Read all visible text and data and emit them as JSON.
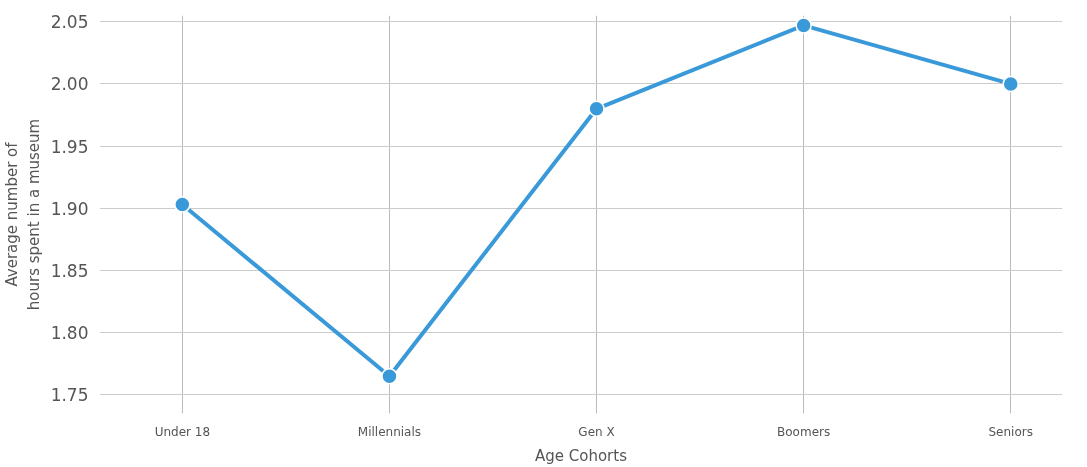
{
  "chart_data": {
    "type": "line",
    "xlabel": "Age Cohorts",
    "ylabel": "Average number of\nhours spent in a museum",
    "categories": [
      "Under 18",
      "Millennials",
      "Gen X",
      "Boomers",
      "Seniors"
    ],
    "series": [
      {
        "color": "#3a9ad9",
        "values": [
          1.903,
          1.765,
          1.98,
          2.047,
          2.0
        ]
      }
    ],
    "ylim": [
      1.735,
      2.055
    ],
    "yticks": [
      {
        "value": 1.75,
        "label": "1.75"
      },
      {
        "value": 1.8,
        "label": "1.80"
      },
      {
        "value": 1.85,
        "label": "1.85"
      },
      {
        "value": 1.9,
        "label": "1.90"
      },
      {
        "value": 1.95,
        "label": "1.95"
      },
      {
        "value": 2.0,
        "label": "2.00"
      },
      {
        "value": 2.05,
        "label": "2.05"
      }
    ],
    "grid": true,
    "marker": "circle",
    "line_style": "solid"
  }
}
